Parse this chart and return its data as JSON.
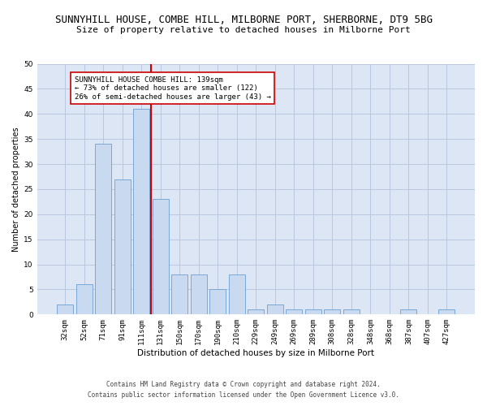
{
  "title": "SUNNYHILL HOUSE, COMBE HILL, MILBORNE PORT, SHERBORNE, DT9 5BG",
  "subtitle": "Size of property relative to detached houses in Milborne Port",
  "xlabel": "Distribution of detached houses by size in Milborne Port",
  "ylabel": "Number of detached properties",
  "categories": [
    "32sqm",
    "52sqm",
    "71sqm",
    "91sqm",
    "111sqm",
    "131sqm",
    "150sqm",
    "170sqm",
    "190sqm",
    "210sqm",
    "229sqm",
    "249sqm",
    "269sqm",
    "289sqm",
    "308sqm",
    "328sqm",
    "348sqm",
    "368sqm",
    "387sqm",
    "407sqm",
    "427sqm"
  ],
  "values": [
    2,
    6,
    34,
    27,
    41,
    23,
    8,
    8,
    5,
    8,
    1,
    2,
    1,
    1,
    1,
    1,
    0,
    0,
    1,
    0,
    1
  ],
  "bar_color": "#c9d9ef",
  "bar_edge_color": "#6b9fd4",
  "vline_x_idx": 5,
  "vline_color": "#cc0000",
  "annotation_text": "SUNNYHILL HOUSE COMBE HILL: 139sqm\n← 73% of detached houses are smaller (122)\n26% of semi-detached houses are larger (43) →",
  "annotation_box_color": "#ffffff",
  "annotation_box_edge": "#cc0000",
  "ylim": [
    0,
    50
  ],
  "yticks": [
    0,
    5,
    10,
    15,
    20,
    25,
    30,
    35,
    40,
    45,
    50
  ],
  "footer1": "Contains HM Land Registry data © Crown copyright and database right 2024.",
  "footer2": "Contains public sector information licensed under the Open Government Licence v3.0.",
  "bg_color": "#ffffff",
  "plot_bg_color": "#dce6f5",
  "grid_color": "#b8c8de",
  "title_fontsize": 9,
  "subtitle_fontsize": 8,
  "xlabel_fontsize": 7.5,
  "ylabel_fontsize": 7,
  "tick_fontsize": 6.5,
  "annotation_fontsize": 6.5,
  "footer_fontsize": 5.5
}
